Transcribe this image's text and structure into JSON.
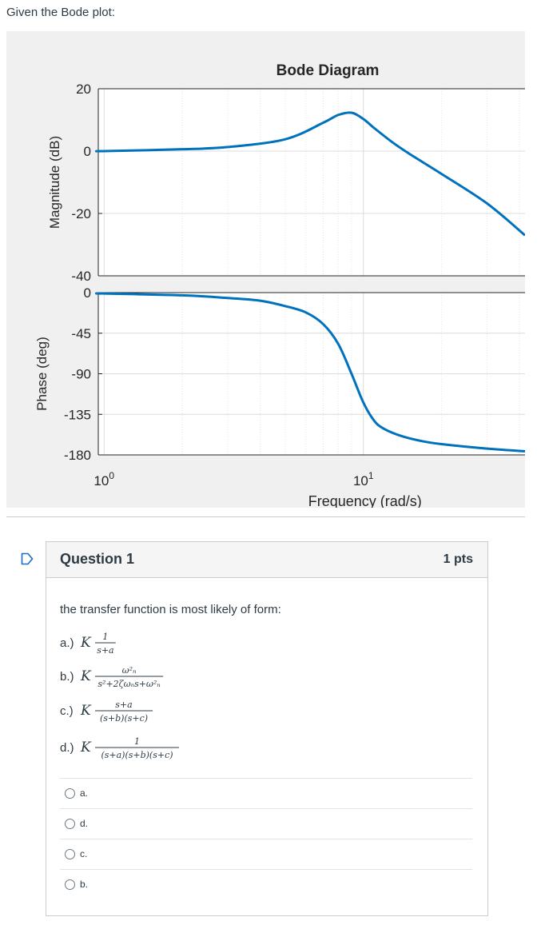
{
  "intro_text": "Given the Bode plot:",
  "chart_data": {
    "type": "line",
    "title": "Bode Diagram",
    "xlabel": "Frequency (rad/s)",
    "x_scale": "log",
    "x_ticks": [
      "10",
      "10"
    ],
    "x_tick_exponents": [
      "0",
      "1"
    ],
    "xlim": [
      0.95,
      42
    ],
    "grid": true,
    "color": "#0072bd",
    "panels": [
      {
        "name": "magnitude",
        "ylabel": "Magnitude (dB)",
        "ylim": [
          -40,
          20
        ],
        "y_ticks": [
          "20",
          "0",
          "-20",
          "-40"
        ],
        "y_tick_values": [
          20,
          0,
          -20,
          -40
        ],
        "x": [
          0.95,
          1,
          2,
          3,
          5,
          7,
          8,
          9,
          10,
          11,
          13,
          15,
          20,
          30,
          42
        ],
        "y": [
          0,
          0,
          0.6,
          1.3,
          3.8,
          9.1,
          11.6,
          12.3,
          10.3,
          7.4,
          2.7,
          -0.8,
          -7.3,
          -16.8,
          -27.0
        ]
      },
      {
        "name": "phase",
        "ylabel": "Phase (deg)",
        "ylim": [
          -180,
          0
        ],
        "y_ticks": [
          "0",
          "-45",
          "-90",
          "-135",
          "-180"
        ],
        "y_tick_values": [
          0,
          -45,
          -90,
          -135,
          -180
        ],
        "x": [
          0.95,
          1,
          2,
          3,
          4,
          5,
          6,
          7,
          8,
          9,
          10,
          11,
          12,
          14,
          17,
          20,
          30,
          42
        ],
        "y": [
          -1,
          -1,
          -3,
          -6,
          -9,
          -15,
          -22,
          -35,
          -57,
          -90,
          -122,
          -142,
          -151,
          -159,
          -165,
          -168,
          -173,
          -176
        ]
      }
    ]
  },
  "question": {
    "title": "Question 1",
    "points": "1 pts",
    "prompt": "the transfer function is most likely of form:",
    "options": [
      {
        "prefix": "a.)",
        "K": "K",
        "num": "1",
        "den": "s+a"
      },
      {
        "prefix": "b.)",
        "K": "K",
        "num": "ω²ₙ",
        "den": "s²+2ζωₙs+ω²ₙ"
      },
      {
        "prefix": "c.)",
        "K": "K",
        "num": "s+a",
        "den": "(s+b)(s+c)"
      },
      {
        "prefix": "d.)",
        "K": "K",
        "num": "1",
        "den": "(s+a)(s+b)(s+c)"
      }
    ],
    "answers": [
      "a.",
      "d.",
      "c.",
      "b."
    ]
  }
}
